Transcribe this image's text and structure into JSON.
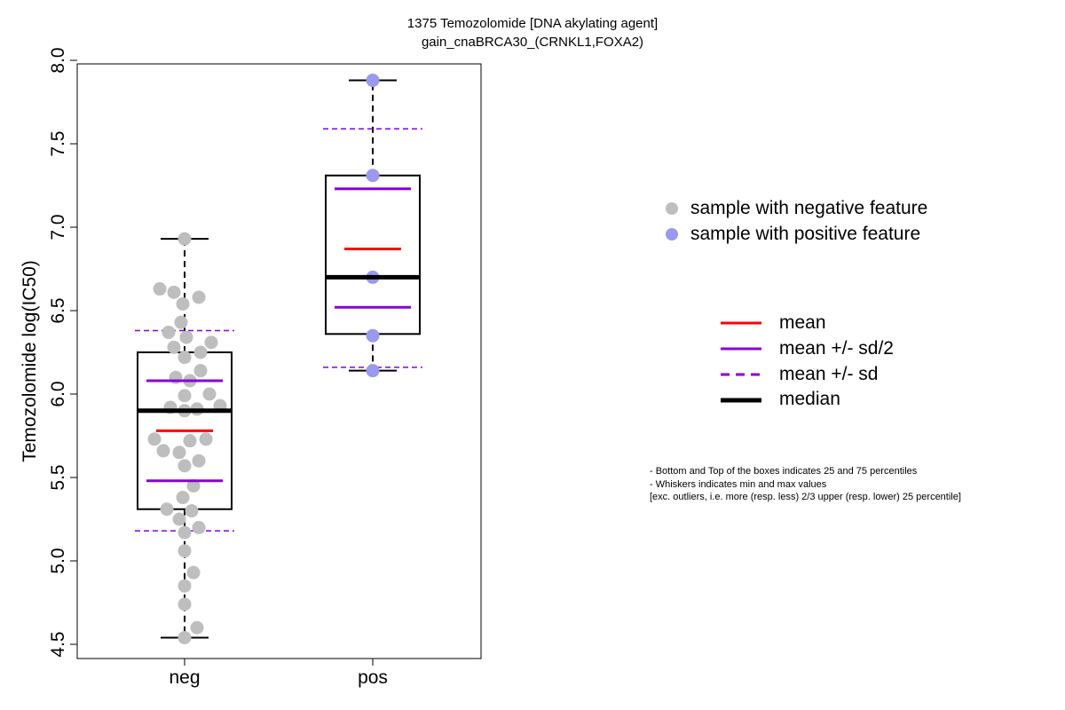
{
  "chart_data": {
    "type": "boxplot",
    "title_line1": "1375 Temozolomide [DNA akylating agent]",
    "title_line2": "gain_cnaBRCA30_(CRNKL1,FOXA2)",
    "ylabel": "Temozolomide log(IC50)",
    "xlabel": "",
    "ylim": [
      4.5,
      8.0
    ],
    "yticks": [
      "4.5",
      "5.0",
      "5.5",
      "6.0",
      "6.5",
      "7.0",
      "7.5",
      "8.0"
    ],
    "grid": false,
    "categories": [
      "neg",
      "pos"
    ],
    "groups": [
      {
        "name": "neg",
        "color": "#bebebe",
        "whisker_low": 4.54,
        "q1": 5.31,
        "median": 5.9,
        "q3": 6.25,
        "whisker_high": 6.93,
        "mean": 5.78,
        "mean_minus_half_sd": 5.48,
        "mean_plus_half_sd": 6.08,
        "mean_minus_sd": 5.18,
        "mean_plus_sd": 6.38,
        "points": [
          6.93,
          6.63,
          6.61,
          6.58,
          6.54,
          6.43,
          6.37,
          6.34,
          6.31,
          6.28,
          6.25,
          6.22,
          6.14,
          6.1,
          6.08,
          6.0,
          5.99,
          5.93,
          5.92,
          5.91,
          5.9,
          5.73,
          5.73,
          5.72,
          5.66,
          5.65,
          5.6,
          5.57,
          5.45,
          5.38,
          5.31,
          5.3,
          5.25,
          5.2,
          5.17,
          5.06,
          4.93,
          4.85,
          4.74,
          4.6,
          4.54
        ]
      },
      {
        "name": "pos",
        "color": "#9999ee",
        "whisker_low": 6.14,
        "q1": 6.36,
        "median": 6.7,
        "q3": 7.31,
        "whisker_high": 7.88,
        "mean": 6.87,
        "mean_minus_half_sd": 6.52,
        "mean_plus_half_sd": 7.23,
        "mean_minus_sd": 6.16,
        "mean_plus_sd": 7.59,
        "points": [
          7.88,
          7.31,
          6.7,
          6.35,
          6.14
        ]
      }
    ],
    "legend_points": [
      {
        "label": "sample with negative feature",
        "color": "#bebebe"
      },
      {
        "label": "sample with positive feature",
        "color": "#9999ee"
      }
    ],
    "legend_lines": [
      {
        "label": "mean",
        "color": "#ff0000",
        "style": "solid"
      },
      {
        "label": "mean +/- sd/2",
        "color": "#8800dd",
        "style": "solid"
      },
      {
        "label": "mean +/- sd",
        "color": "#8800dd",
        "style": "dashed"
      },
      {
        "label": "median",
        "color": "#000000",
        "style": "thick"
      }
    ],
    "notes": [
      "- Bottom and Top of the boxes indicates 25 and 75 percentiles",
      "- Whiskers indicates min and max values",
      "[exc. outliers, i.e. more (resp. less) 2/3 upper (resp. lower) 25 percentile]"
    ]
  }
}
